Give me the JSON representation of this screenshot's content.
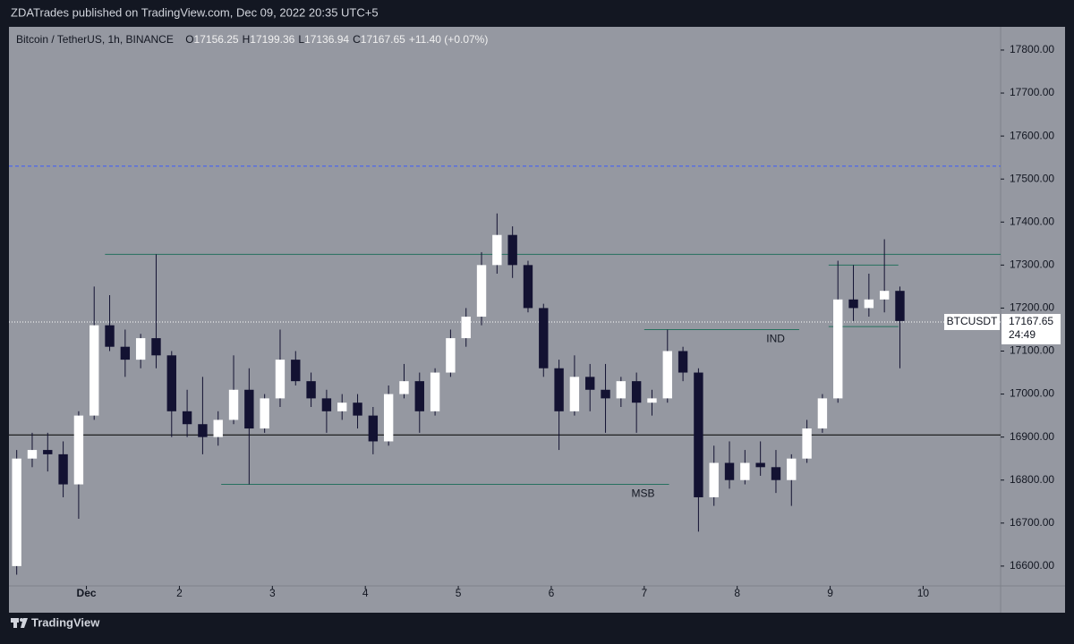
{
  "header": {
    "publisher": "ZDATrades published on TradingView.com, Dec 09, 2022 20:35 UTC+5"
  },
  "footer": {
    "brand": "TradingView"
  },
  "chart_data": {
    "type": "candlestick",
    "title": "Bitcoin / TetherUS, 1h, BINANCE",
    "ohlc_legend": [
      {
        "label": "O",
        "value": "17156.25"
      },
      {
        "label": "H",
        "value": "17199.36"
      },
      {
        "label": "L",
        "value": "17136.94"
      },
      {
        "label": "C",
        "value": "17167.65"
      }
    ],
    "change": "+11.40 (+0.07%)",
    "up_color": "#ffffff",
    "down_color": "#131232",
    "candles": [
      [
        16600,
        16870,
        16580,
        16850
      ],
      [
        16850,
        16910,
        16830,
        16870
      ],
      [
        16870,
        16910,
        16820,
        16860
      ],
      [
        16860,
        16890,
        16760,
        16790
      ],
      [
        16790,
        16960,
        16710,
        16950
      ],
      [
        16950,
        17250,
        16940,
        17160
      ],
      [
        17160,
        17230,
        17100,
        17110
      ],
      [
        17110,
        17150,
        17040,
        17080
      ],
      [
        17080,
        17140,
        17060,
        17130
      ],
      [
        17130,
        17325,
        17060,
        17090
      ],
      [
        17090,
        17100,
        16900,
        16960
      ],
      [
        16960,
        17010,
        16900,
        16930
      ],
      [
        16930,
        17040,
        16860,
        16900
      ],
      [
        16900,
        16960,
        16880,
        16940
      ],
      [
        16940,
        17090,
        16930,
        17010
      ],
      [
        17010,
        17060,
        16790,
        16920
      ],
      [
        16920,
        17000,
        16910,
        16990
      ],
      [
        16990,
        17150,
        16970,
        17080
      ],
      [
        17080,
        17100,
        17020,
        17030
      ],
      [
        17030,
        17050,
        16970,
        16990
      ],
      [
        16990,
        17010,
        16910,
        16960
      ],
      [
        16960,
        17000,
        16940,
        16980
      ],
      [
        16980,
        17000,
        16920,
        16950
      ],
      [
        16950,
        16970,
        16860,
        16890
      ],
      [
        16890,
        17020,
        16880,
        17000
      ],
      [
        17000,
        17070,
        16990,
        17030
      ],
      [
        17030,
        17050,
        16910,
        16960
      ],
      [
        16960,
        17060,
        16950,
        17050
      ],
      [
        17050,
        17150,
        17040,
        17130
      ],
      [
        17130,
        17200,
        17110,
        17180
      ],
      [
        17180,
        17330,
        17160,
        17300
      ],
      [
        17300,
        17420,
        17280,
        17370
      ],
      [
        17370,
        17390,
        17270,
        17300
      ],
      [
        17300,
        17310,
        17190,
        17200
      ],
      [
        17200,
        17210,
        17040,
        17060
      ],
      [
        17060,
        17080,
        16870,
        16960
      ],
      [
        16960,
        17090,
        16950,
        17040
      ],
      [
        17040,
        17070,
        16960,
        17010
      ],
      [
        17010,
        17070,
        16910,
        16990
      ],
      [
        16990,
        17040,
        16970,
        17030
      ],
      [
        17030,
        17050,
        16910,
        16980
      ],
      [
        16980,
        17010,
        16950,
        16990
      ],
      [
        16990,
        17150,
        16980,
        17100
      ],
      [
        17100,
        17110,
        17030,
        17050
      ],
      [
        17050,
        17060,
        16680,
        16760
      ],
      [
        16760,
        16880,
        16740,
        16840
      ],
      [
        16840,
        16890,
        16780,
        16800
      ],
      [
        16800,
        16870,
        16790,
        16840
      ],
      [
        16840,
        16890,
        16810,
        16830
      ],
      [
        16830,
        16870,
        16770,
        16800
      ],
      [
        16800,
        16860,
        16740,
        16850
      ],
      [
        16850,
        16940,
        16840,
        16920
      ],
      [
        16920,
        17000,
        16910,
        16990
      ],
      [
        16990,
        17310,
        16980,
        17220
      ],
      [
        17220,
        17300,
        17170,
        17200
      ],
      [
        17200,
        17280,
        17180,
        17220
      ],
      [
        17220,
        17360,
        17190,
        17240
      ],
      [
        17240,
        17250,
        17060,
        17170
      ]
    ],
    "xlim": [
      -0.5,
      63.5
    ],
    "xticks": [
      {
        "value": 4.5,
        "label": "Dec"
      },
      {
        "value": 10.5,
        "label": "2"
      },
      {
        "value": 16.5,
        "label": "3"
      },
      {
        "value": 22.5,
        "label": "4"
      },
      {
        "value": 28.5,
        "label": "5"
      },
      {
        "value": 34.5,
        "label": "6"
      },
      {
        "value": 40.5,
        "label": "7"
      },
      {
        "value": 46.5,
        "label": "8"
      },
      {
        "value": 52.5,
        "label": "9"
      },
      {
        "value": 58.5,
        "label": "10"
      }
    ],
    "ylim": [
      16554,
      17854
    ],
    "yticks": [
      {
        "value": 16600,
        "label": "16600.00"
      },
      {
        "value": 16700,
        "label": "16700.00"
      },
      {
        "value": 16800,
        "label": "16800.00"
      },
      {
        "value": 16900,
        "label": "16900.00"
      },
      {
        "value": 17000,
        "label": "17000.00"
      },
      {
        "value": 17100,
        "label": "17100.00"
      },
      {
        "value": 17200,
        "label": "17200.00"
      },
      {
        "value": 17300,
        "label": "17300.00"
      },
      {
        "value": 17400,
        "label": "17400.00"
      },
      {
        "value": 17500,
        "label": "17500.00"
      },
      {
        "value": 17600,
        "label": "17600.00"
      },
      {
        "value": 17700,
        "label": "17700.00"
      },
      {
        "value": 17800,
        "label": "17800.00"
      }
    ],
    "levels": [
      {
        "value": 17530,
        "color": "#3d5afe",
        "style": "dashed"
      },
      {
        "value": 16905,
        "color": "#000000",
        "style": "solid"
      },
      {
        "value": 17325,
        "color": "#26705e",
        "style": "solid",
        "start": 5.7
      },
      {
        "value": 17150,
        "color": "#26705e",
        "style": "solid",
        "start": 40.5,
        "end": 50.5,
        "label": "IND"
      },
      {
        "value": 16790,
        "color": "#26705e",
        "style": "solid",
        "start": 13.2,
        "end": 42.1,
        "label": "MSB"
      },
      {
        "value": 17300,
        "color": "#26705e",
        "style": "solid",
        "start": 52.4,
        "end": 56.9
      },
      {
        "value": 17157,
        "color": "#26705e",
        "style": "solid",
        "start": 52.4,
        "end": 56.9
      }
    ],
    "last_price": 17167.65,
    "price_tag": {
      "symbol": "BTCUSDT",
      "price": "17167.65",
      "countdown": "24:49"
    }
  }
}
